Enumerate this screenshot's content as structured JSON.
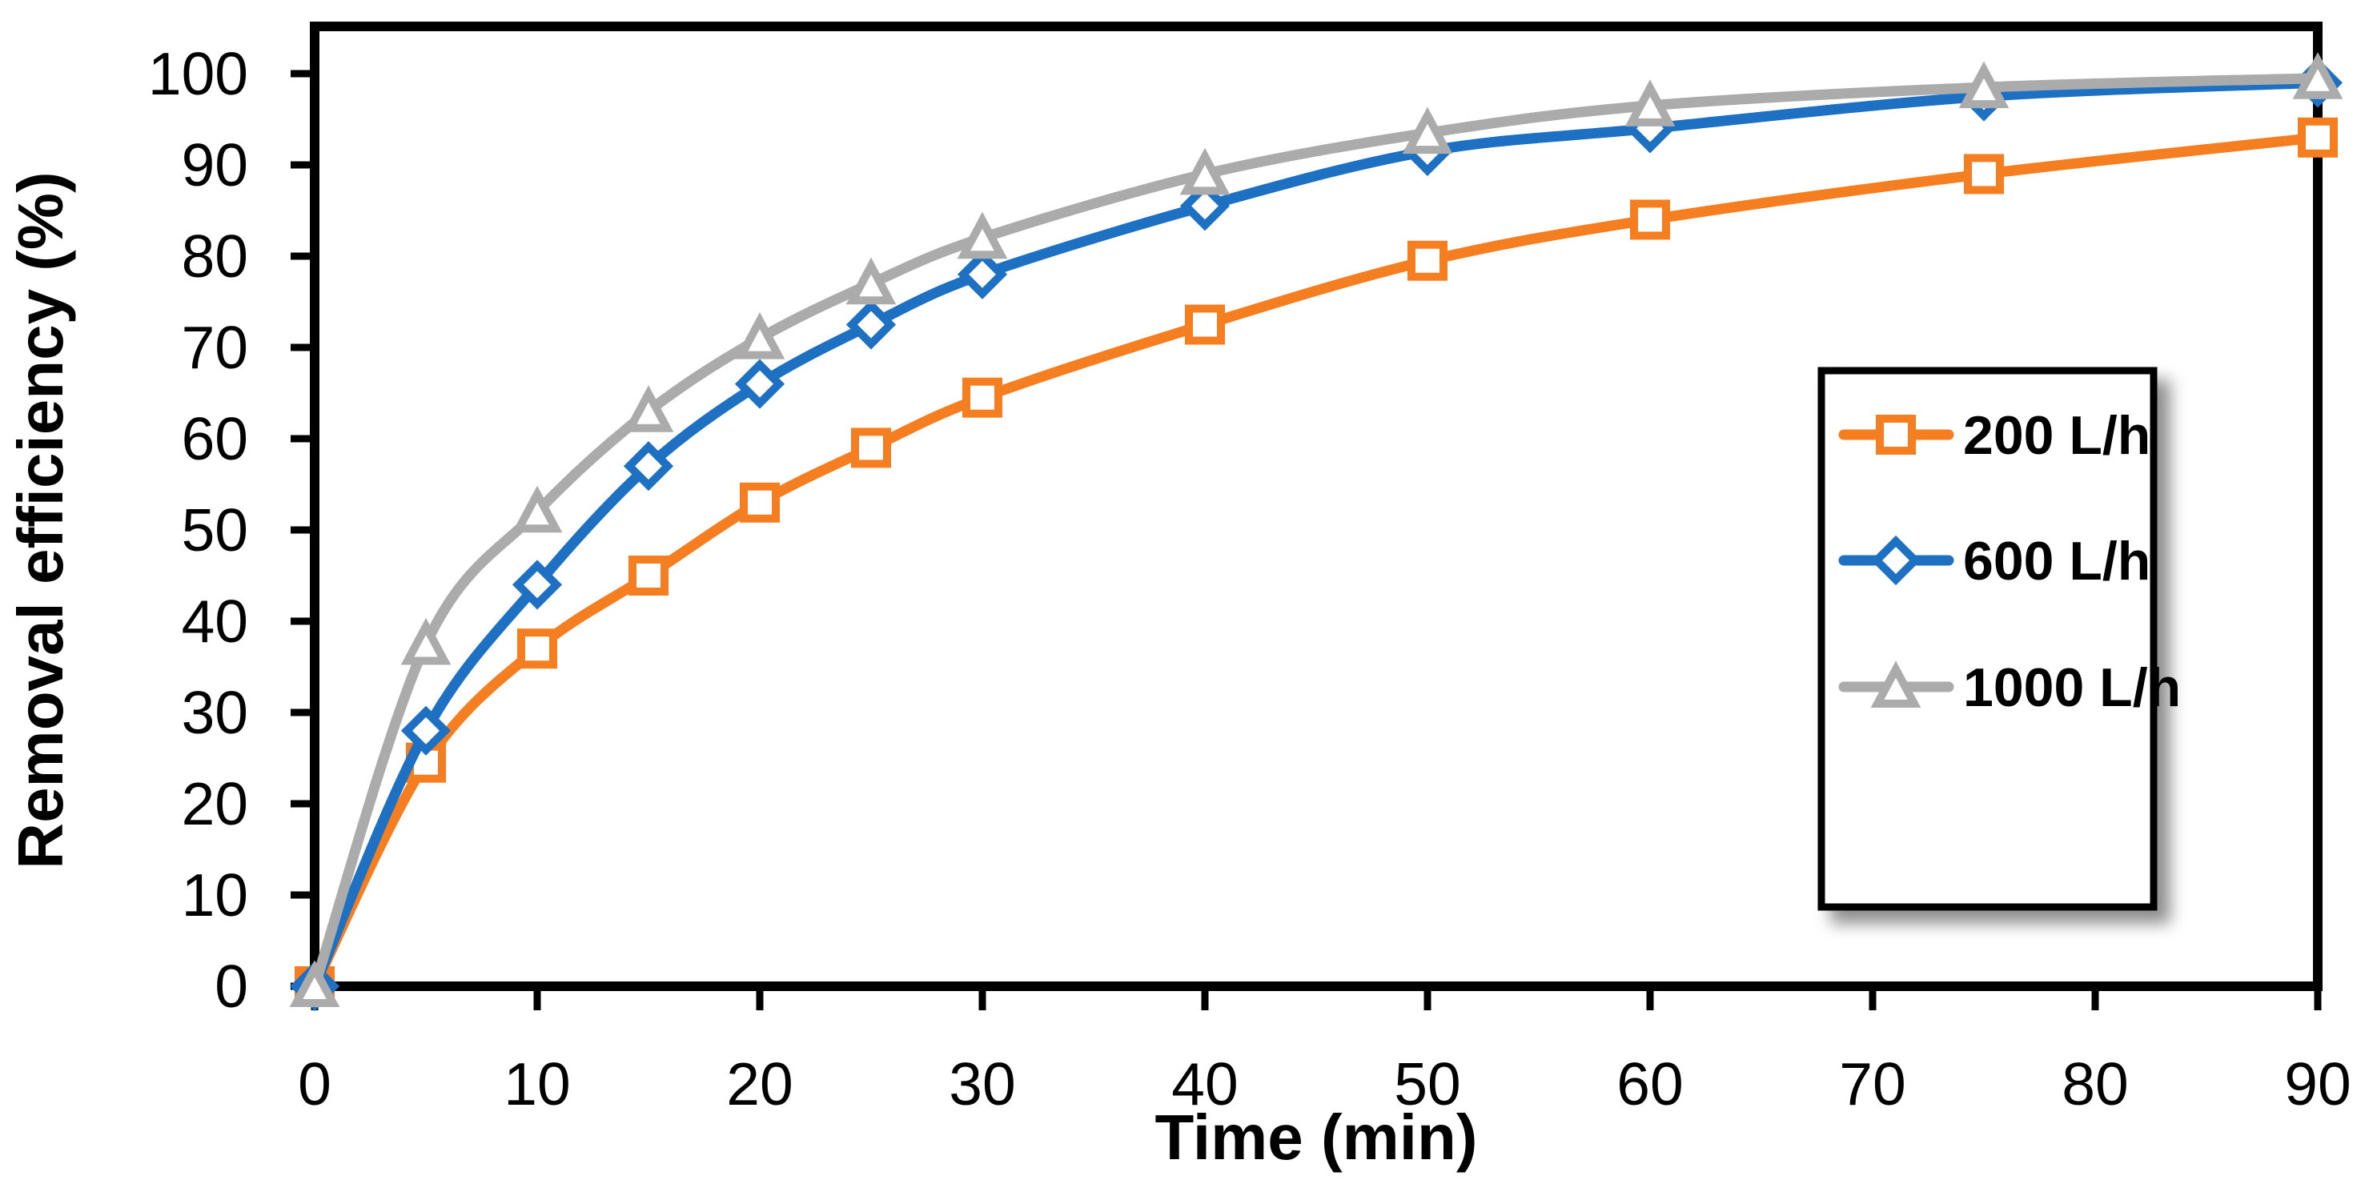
{
  "chart_data": {
    "type": "line",
    "title": "",
    "xlabel": "Time (min)",
    "ylabel": "Removal efficiency (%)",
    "x": [
      0,
      5,
      10,
      15,
      20,
      25,
      30,
      40,
      50,
      60,
      75,
      90
    ],
    "series": [
      {
        "name": "200 L/h",
        "color": "#F57E20",
        "marker": "square",
        "values": [
          0,
          24.5,
          37,
          45,
          53,
          59,
          64.5,
          72.5,
          79.5,
          84,
          89,
          93
        ]
      },
      {
        "name": "600 L/h",
        "color": "#1D70C2",
        "marker": "diamond",
        "values": [
          0,
          28,
          44,
          57,
          66,
          72.5,
          78,
          85.5,
          91.5,
          94,
          97.5,
          99
        ]
      },
      {
        "name": "1000 L/h",
        "color": "#ABABAB",
        "marker": "triangle",
        "values": [
          0,
          37.5,
          52,
          63,
          71,
          77,
          82,
          89,
          93.5,
          96.5,
          98.5,
          99.5
        ]
      }
    ],
    "xlim": [
      0,
      90
    ],
    "ylim": [
      0,
      100
    ],
    "xticks": [
      0,
      10,
      20,
      30,
      40,
      50,
      60,
      70,
      80,
      90
    ],
    "yticks": [
      0,
      10,
      20,
      30,
      40,
      50,
      60,
      70,
      80,
      90,
      100
    ],
    "grid": false,
    "smoothed_lines": true,
    "marker_fill": "#FFFFFF",
    "axis_color": "#000000",
    "text_color": "#000000",
    "legend_position": "inside-right",
    "legend_border_color": "#000000",
    "legend_background": "#FFFFFF"
  }
}
